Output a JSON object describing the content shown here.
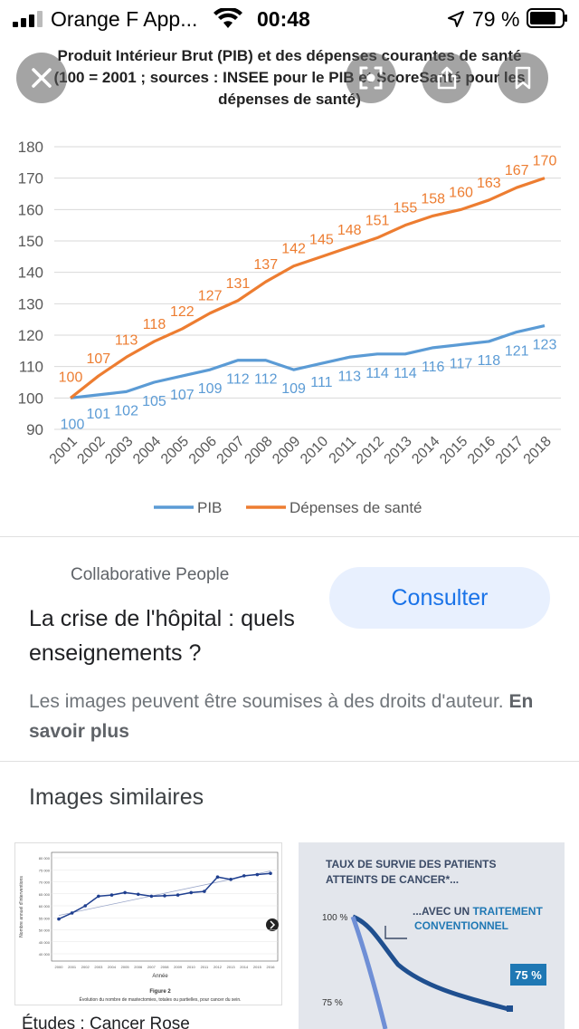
{
  "status_bar": {
    "carrier": "Orange F App...",
    "time": "00:48",
    "battery": "79 %"
  },
  "toolbar": {
    "close_icon": "close-icon",
    "lens_icon": "lens-icon",
    "share_icon": "share-icon",
    "bookmark_icon": "bookmark-icon"
  },
  "chart_data": {
    "type": "line",
    "title": "Produit Intérieur Brut (PIB) et des dépenses courantes de santé",
    "subtitle": "(100 = 2001 ; sources : INSEE pour le PIB et ScoreSanté pour les dépenses de santé)",
    "x": [
      "2001",
      "2002",
      "2003",
      "2004",
      "2005",
      "2006",
      "2007",
      "2008",
      "2009",
      "2010",
      "2011",
      "2012",
      "2013",
      "2014",
      "2015",
      "2016",
      "2017",
      "2018"
    ],
    "yticks": [
      "90",
      "100",
      "110",
      "120",
      "130",
      "140",
      "150",
      "160",
      "170",
      "180"
    ],
    "ylim": [
      90,
      180
    ],
    "grid": true,
    "legend_position": "bottom",
    "series": [
      {
        "name": "PIB",
        "color": "#5b9bd5",
        "values": [
          100,
          101,
          102,
          105,
          107,
          109,
          112,
          112,
          109,
          111,
          113,
          114,
          114,
          116,
          117,
          118,
          121,
          123
        ],
        "labels": [
          "100",
          "101",
          "102",
          "105",
          "107",
          "109",
          "112",
          "112",
          "109",
          "111",
          "113",
          "114",
          "114",
          "116",
          "117",
          "118",
          "121",
          "123"
        ]
      },
      {
        "name": "Dépenses de santé",
        "color": "#ed7d31",
        "values": [
          100,
          107,
          113,
          118,
          122,
          127,
          131,
          137,
          142,
          145,
          148,
          151,
          155,
          158,
          160,
          163,
          167,
          170
        ],
        "labels": [
          "100",
          "107",
          "113",
          "118",
          "122",
          "127",
          "131",
          "137",
          "142",
          "145",
          "148",
          "151",
          "155",
          "158",
          "160",
          "163",
          "167",
          "170"
        ]
      }
    ]
  },
  "result": {
    "source": "Collaborative People",
    "title": "La crise de l'hôpital : quels enseignements ?",
    "consult_label": "Consulter",
    "rights_text": "Les images peuvent être soumises à des droits d'auteur.",
    "rights_link": "En savoir plus"
  },
  "similar": {
    "heading": "Images similaires",
    "items": [
      {
        "caption": "Études : Cancer Rose",
        "figure_label": "Figure 2",
        "figure_caption": "Évolution du nombre de mastectomies, totales ou partielles, pour cancer du sein.",
        "axis_label": "Année",
        "y_axis_label": "Nombre annuel d'interventions",
        "x_ticks": [
          "2000",
          "2001",
          "2002",
          "2003",
          "2004",
          "2005",
          "2006",
          "2007",
          "2008",
          "2009",
          "2010",
          "2011",
          "2012",
          "2013",
          "2014",
          "2015",
          "2016"
        ],
        "y_ticks": [
          "40 000",
          "45 000",
          "50 000",
          "55 000",
          "60 000",
          "65 000",
          "70 000",
          "75 000",
          "80 000"
        ],
        "values": [
          54500,
          57000,
          60000,
          64000,
          64500,
          65500,
          64800,
          64000,
          64200,
          64500,
          65500,
          66000,
          72000,
          71000,
          72500,
          73000,
          73500
        ]
      },
      {
        "caption": "",
        "text_line1": "TAUX DE SURVIE DES PATIENTS",
        "text_line2": "ATTEINTS DE CANCER*...",
        "label_100": "100 %",
        "label_75": "75 %",
        "treatment_prefix": "...AVEC UN",
        "treatment_highlight": "TRAITEMENT",
        "treatment_line2": "CONVENTIONNEL",
        "badge": "75 %"
      }
    ]
  }
}
